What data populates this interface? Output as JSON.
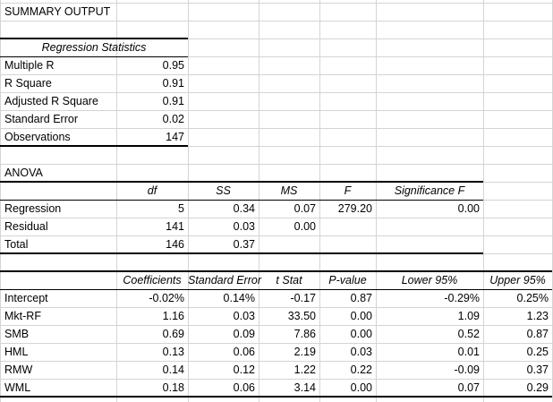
{
  "title": "SUMMARY OUTPUT",
  "reg_stats": {
    "header": "Regression Statistics",
    "rows": [
      {
        "label": "Multiple R",
        "value": "0.95"
      },
      {
        "label": "R Square",
        "value": "0.91"
      },
      {
        "label": "Adjusted R Square",
        "value": "0.91"
      },
      {
        "label": "Standard Error",
        "value": "0.02"
      },
      {
        "label": "Observations",
        "value": "147"
      }
    ]
  },
  "anova": {
    "title": "ANOVA",
    "headers": [
      "df",
      "SS",
      "MS",
      "F",
      "Significance F"
    ],
    "rows": [
      {
        "label": "Regression",
        "df": "5",
        "ss": "0.34",
        "ms": "0.07",
        "f": "279.20",
        "sig": "0.00"
      },
      {
        "label": "Residual",
        "df": "141",
        "ss": "0.03",
        "ms": "0.00",
        "f": "",
        "sig": ""
      },
      {
        "label": "Total",
        "df": "146",
        "ss": "0.37",
        "ms": "",
        "f": "",
        "sig": ""
      }
    ]
  },
  "coef": {
    "headers": [
      "Coefficients",
      "Standard Error",
      "t Stat",
      "P-value",
      "Lower 95%",
      "Upper 95%"
    ],
    "rows": [
      {
        "label": "Intercept",
        "coef": "-0.02%",
        "se": "0.14%",
        "t": "-0.17",
        "p": "0.87",
        "lo": "-0.29%",
        "hi": "0.25%"
      },
      {
        "label": "Mkt-RF",
        "coef": "1.16",
        "se": "0.03",
        "t": "33.50",
        "p": "0.00",
        "lo": "1.09",
        "hi": "1.23"
      },
      {
        "label": "SMB",
        "coef": "0.69",
        "se": "0.09",
        "t": "7.86",
        "p": "0.00",
        "lo": "0.52",
        "hi": "0.87"
      },
      {
        "label": "HML",
        "coef": "0.13",
        "se": "0.06",
        "t": "2.19",
        "p": "0.03",
        "lo": "0.01",
        "hi": "0.25"
      },
      {
        "label": "RMW",
        "coef": "0.14",
        "se": "0.12",
        "t": "1.22",
        "p": "0.22",
        "lo": "-0.09",
        "hi": "0.37"
      },
      {
        "label": "WML",
        "coef": "0.18",
        "se": "0.06",
        "t": "3.14",
        "p": "0.00",
        "lo": "0.07",
        "hi": "0.29"
      }
    ]
  }
}
